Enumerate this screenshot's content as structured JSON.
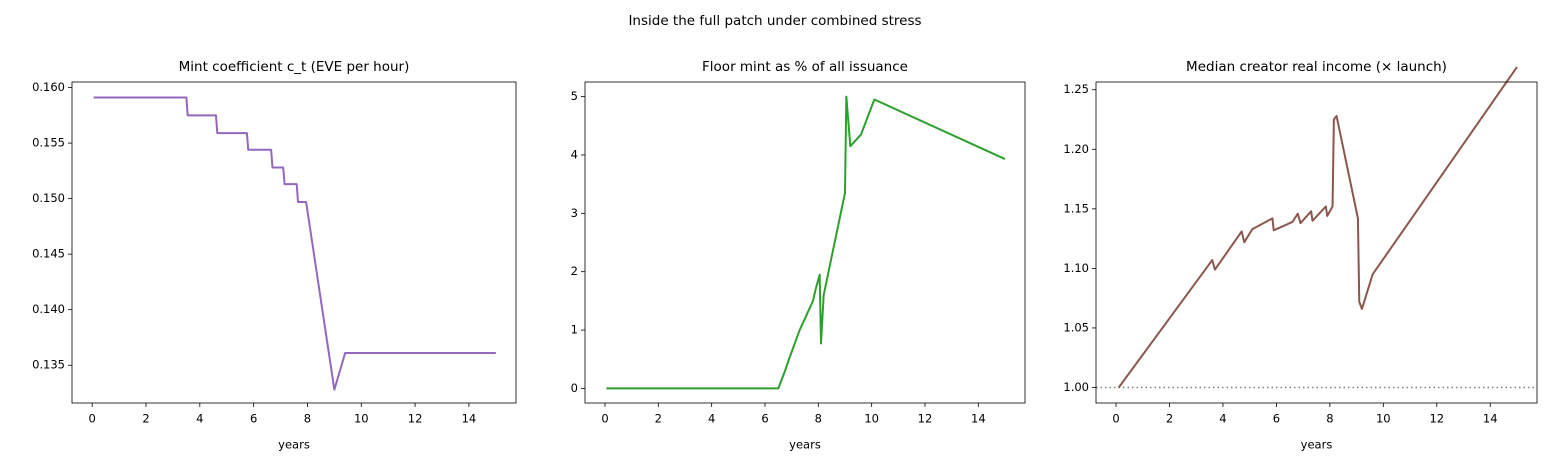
{
  "title": "Inside the full patch under combined stress",
  "chart_data": [
    {
      "type": "line",
      "title": "Mint coefficient c_t (EVE per hour)",
      "xlabel": "years",
      "color": "#9467bd",
      "x": [
        0.05,
        3.5,
        3.55,
        4.6,
        4.65,
        5.75,
        5.8,
        6.65,
        6.7,
        7.1,
        7.15,
        7.6,
        7.65,
        7.95,
        9.0,
        9.4,
        15
      ],
      "values": [
        0.1591,
        0.1591,
        0.1575,
        0.1575,
        0.1559,
        0.1559,
        0.1544,
        0.1544,
        0.1528,
        0.1528,
        0.1513,
        0.1513,
        0.1497,
        0.1497,
        0.1328,
        0.1361,
        0.1361
      ],
      "xlim": [
        -0.75,
        15.75
      ],
      "ylim": [
        0.1316,
        0.1605
      ],
      "xticks": [
        0,
        2,
        4,
        6,
        8,
        10,
        12,
        14
      ],
      "yticks": [
        {
          "value": 0.135,
          "label": "0.135"
        },
        {
          "value": 0.14,
          "label": "0.140"
        },
        {
          "value": 0.145,
          "label": "0.145"
        },
        {
          "value": 0.15,
          "label": "0.150"
        },
        {
          "value": 0.155,
          "label": "0.155"
        },
        {
          "value": 0.16,
          "label": "0.160"
        }
      ]
    },
    {
      "type": "line",
      "title": "Floor mint as % of all issuance",
      "xlabel": "years",
      "color": "#2ca02c",
      "x": [
        0.05,
        6.5,
        6.75,
        6.9,
        7.3,
        7.8,
        7.9,
        8.05,
        8.1,
        8.2,
        9.0,
        9.05,
        9.2,
        9.6,
        10.1,
        15
      ],
      "values": [
        0,
        0,
        0.3,
        0.5,
        1.0,
        1.5,
        1.7,
        1.95,
        0.77,
        1.6,
        3.35,
        5.0,
        4.15,
        4.35,
        4.95,
        3.93
      ],
      "xlim": [
        -0.75,
        15.75
      ],
      "ylim": [
        -0.25,
        5.25
      ],
      "xticks": [
        0,
        2,
        4,
        6,
        8,
        10,
        12,
        14
      ],
      "yticks": [
        0,
        1,
        2,
        3,
        4,
        5
      ]
    },
    {
      "type": "line",
      "title": "Median creator real income (× launch)",
      "xlabel": "years",
      "color": "#8c564b",
      "x": [
        0.1,
        3.6,
        3.7,
        4.7,
        4.8,
        5.1,
        5.85,
        5.9,
        6.6,
        6.8,
        6.9,
        7.3,
        7.35,
        7.85,
        7.9,
        8.1,
        8.15,
        8.25,
        9.05,
        9.1,
        9.2,
        9.6,
        15
      ],
      "values": [
        1.0,
        1.107,
        1.099,
        1.131,
        1.122,
        1.133,
        1.142,
        1.132,
        1.139,
        1.146,
        1.138,
        1.148,
        1.14,
        1.152,
        1.144,
        1.152,
        1.225,
        1.228,
        1.142,
        1.072,
        1.066,
        1.095,
        1.269
      ],
      "hline": 1,
      "hline_color": "#808080",
      "xlim": [
        -0.75,
        15.75
      ],
      "ylim": [
        0.987,
        1.2565
      ],
      "xticks": [
        0,
        2,
        4,
        6,
        8,
        10,
        12,
        14
      ],
      "yticks": [
        {
          "value": 1.0,
          "label": "1.00"
        },
        {
          "value": 1.05,
          "label": "1.05"
        },
        {
          "value": 1.1,
          "label": "1.10"
        },
        {
          "value": 1.15,
          "label": "1.15"
        },
        {
          "value": 1.2,
          "label": "1.20"
        },
        {
          "value": 1.25,
          "label": "1.25"
        }
      ]
    }
  ]
}
